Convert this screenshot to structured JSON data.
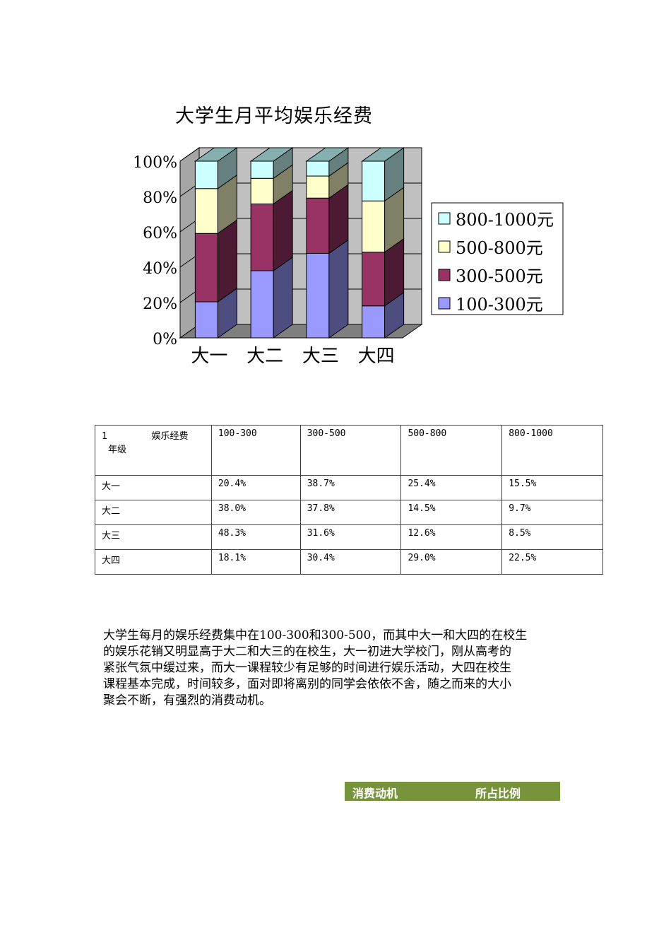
{
  "chart_data": {
    "type": "bar",
    "stacked": true,
    "stack_mode": "percent",
    "title": "大学生月平均娱乐经费",
    "categories": [
      "大一",
      "大二",
      "大三",
      "大四"
    ],
    "series": [
      {
        "name": "100-300元",
        "values": [
          20.4,
          38.0,
          48.3,
          18.1
        ],
        "color": "#9999ff"
      },
      {
        "name": "300-500元",
        "values": [
          38.7,
          37.8,
          31.6,
          30.4
        ],
        "color": "#993366"
      },
      {
        "name": "500-800元",
        "values": [
          25.4,
          14.5,
          12.6,
          29.0
        ],
        "color": "#ffffcc"
      },
      {
        "name": "800-1000元",
        "values": [
          15.5,
          9.7,
          8.5,
          22.5
        ],
        "color": "#ccffff"
      }
    ],
    "y_ticks": [
      "0%",
      "20%",
      "40%",
      "60%",
      "80%",
      "100%"
    ],
    "ylim": [
      0,
      100
    ],
    "legend_position": "right",
    "grid": true,
    "style": "3d"
  },
  "table": {
    "corner_line1": "1        娱乐经费",
    "corner_line2": "年级",
    "headers": [
      "100-300",
      "300-500",
      "500-800",
      "800-1000"
    ],
    "rows": [
      {
        "grade": "大一",
        "values": [
          "20.4%",
          "38.7%",
          "25.4%",
          "15.5%"
        ]
      },
      {
        "grade": "大二",
        "values": [
          "38.0%",
          "37.8%",
          "14.5%",
          "9.7%"
        ]
      },
      {
        "grade": "大三",
        "values": [
          "48.3%",
          "31.6%",
          "12.6%",
          "8.5%"
        ]
      },
      {
        "grade": "大四",
        "values": [
          "18.1%",
          "30.4%",
          "29.0%",
          "22.5%"
        ]
      }
    ]
  },
  "paragraph": {
    "lines": [
      "大学生每月的娱乐经费集中在100-300和300-500，而其中大一和大四的在校生",
      "的娱乐花销又明显高于大二和大三的在校生，大一初进大学校门，刚从高考的",
      "紧张气氛中缓过来，而大一课程较少有足够的时间进行娱乐活动，大四在校生",
      "课程基本完成，时间较多，面对即将离别的同学会依依不舍，随之而来的大小",
      "聚会不断，有强烈的消费动机。"
    ]
  },
  "motive_table": {
    "col1": "消费动机",
    "col2": "所占比例",
    "header_color": "#77933c"
  }
}
